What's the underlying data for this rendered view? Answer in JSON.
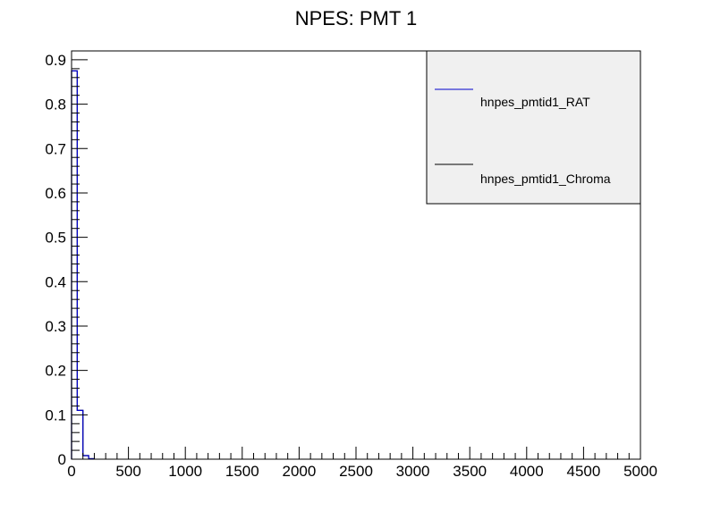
{
  "chart_data": {
    "type": "line",
    "title": "NPES: PMT 1",
    "xlabel": "",
    "ylabel": "",
    "xlim": [
      0,
      5000
    ],
    "ylim": [
      0,
      0.92
    ],
    "x_ticks": [
      "0",
      "500",
      "1000",
      "1500",
      "2000",
      "2500",
      "3000",
      "3500",
      "4000",
      "4500",
      "5000"
    ],
    "y_ticks": [
      "0",
      "0.1",
      "0.2",
      "0.3",
      "0.4",
      "0.5",
      "0.6",
      "0.7",
      "0.8",
      "0.9"
    ],
    "grid": false,
    "legend_position": "top-right",
    "series": [
      {
        "name": "hnpes_pmtid1_RAT",
        "color": "#0000cc",
        "bin_edges": [
          0,
          50,
          100,
          150,
          200
        ],
        "values": [
          0.875,
          0.11,
          0.008,
          0.001
        ]
      },
      {
        "name": "hnpes_pmtid1_Chroma",
        "color": "#000000",
        "bin_edges": [
          0,
          50,
          100,
          150,
          200
        ],
        "values": [
          0.875,
          0.11,
          0.008,
          0.001
        ]
      }
    ]
  }
}
